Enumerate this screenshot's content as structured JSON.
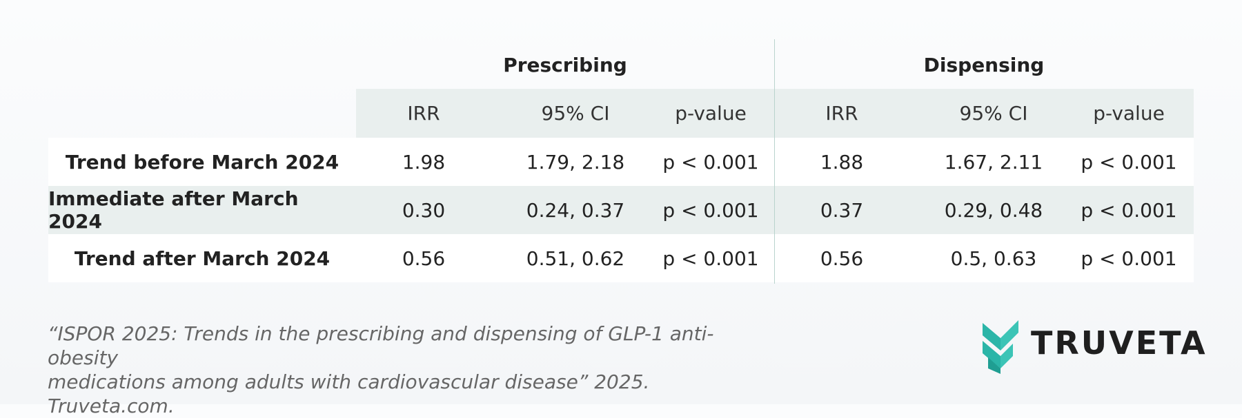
{
  "table": {
    "groups": [
      "Prescribing",
      "Dispensing"
    ],
    "columns": [
      "IRR",
      "95% CI",
      "p-value",
      "IRR",
      "95% CI",
      "p-value"
    ],
    "rows": [
      {
        "label": "Trend before March 2024",
        "cells": [
          "1.98",
          "1.79, 2.18",
          "p < 0.001",
          "1.88",
          "1.67, 2.11",
          "p < 0.001"
        ]
      },
      {
        "label": "Immediate after March 2024",
        "cells": [
          "0.30",
          "0.24, 0.37",
          "p < 0.001",
          "0.37",
          "0.29, 0.48",
          "p < 0.001"
        ]
      },
      {
        "label": "Trend after March 2024",
        "cells": [
          "0.56",
          "0.51, 0.62",
          "p < 0.001",
          "0.56",
          "0.5, 0.63",
          "p < 0.001"
        ]
      }
    ]
  },
  "citation": {
    "line1": "“ISPOR 2025: Trends in the prescribing and dispensing of GLP-1 anti-obesity",
    "line2": "medications among adults with cardiovascular disease” 2025. Truveta.com."
  },
  "logo": {
    "text": "TRUVETA",
    "icon": "chevron-stack-icon",
    "accent": "#2bb5a8"
  }
}
